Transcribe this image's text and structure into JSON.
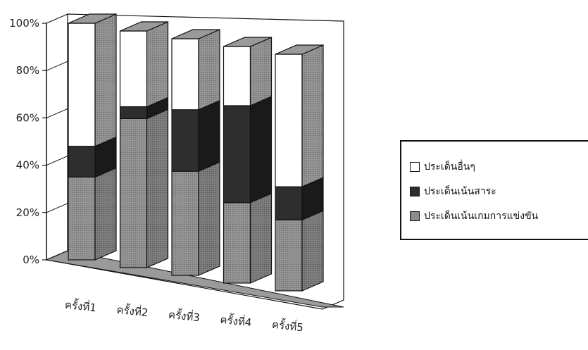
{
  "chart_data": {
    "type": "bar",
    "stacked": true,
    "percent_stacked": true,
    "three_d": true,
    "categories": [
      "ครั้งที่1",
      "ครั้งที่2",
      "ครั้งที่3",
      "ครั้งที่4",
      "ครั้งที่5"
    ],
    "series": [
      {
        "name": "ประเด็นเน้นเกมการแข่งขัน",
        "values": [
          35,
          63,
          44,
          34,
          30
        ],
        "color": "#8c8c8c",
        "pattern": "dotted"
      },
      {
        "name": "ประเด็นเน้นสาระ",
        "values": [
          13,
          5,
          26,
          41,
          14
        ],
        "color": "#2e2e2e"
      },
      {
        "name": "ประเด็นอื่นๆ",
        "values": [
          52,
          32,
          30,
          25,
          56
        ],
        "color": "#ffffff"
      }
    ],
    "y_ticks": [
      "0%",
      "20%",
      "40%",
      "60%",
      "80%",
      "100%"
    ],
    "ylim": [
      0,
      100
    ],
    "legend_position": "right",
    "grid": false
  }
}
